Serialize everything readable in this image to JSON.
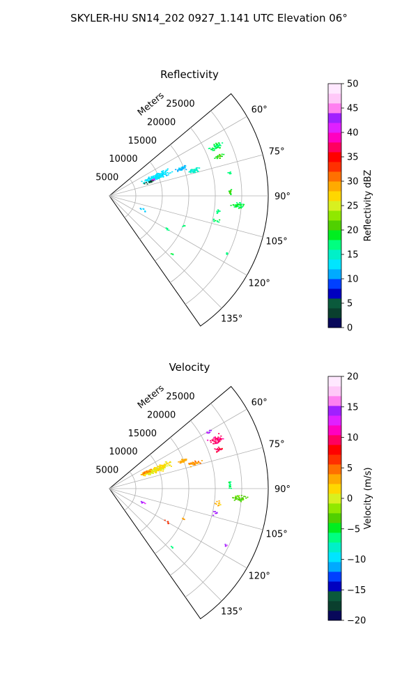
{
  "figure_title": "SKYLER-HU  SN14_202  0927_1.141 UTC Elevation 06°",
  "chart_data": [
    {
      "type": "scatter",
      "title": "Reflectivity",
      "range_label": "Meters",
      "range_ticks": [
        5000,
        10000,
        15000,
        20000,
        25000
      ],
      "range_max": 30000,
      "azimuth_min_deg": 50,
      "azimuth_max_deg": 145,
      "azimuth_ticks": [
        "60°",
        "75°",
        "90°",
        "105°",
        "120°",
        "135°"
      ],
      "azimuth_tick_values": [
        60,
        75,
        90,
        105,
        120,
        135
      ],
      "grid": true,
      "colorbar": {
        "label": "Reflectivity dBZ",
        "min": 0,
        "max": 50,
        "ticks": [
          "0",
          "5",
          "10",
          "15",
          "20",
          "25",
          "30",
          "35",
          "40",
          "45",
          "50"
        ],
        "tick_values": [
          0,
          5,
          10,
          15,
          20,
          25,
          30,
          35,
          40,
          45,
          50
        ],
        "colors": [
          "#08085a",
          "#0a3f2e",
          "#0b5a3c",
          "#0000c0",
          "#0040ff",
          "#00aaff",
          "#00e5ff",
          "#00f0c8",
          "#00ff80",
          "#00ee20",
          "#50d000",
          "#90e800",
          "#d8f020",
          "#ffd700",
          "#ffaa00",
          "#ff7000",
          "#ff3000",
          "#ff0000",
          "#ff0060",
          "#ff00c0",
          "#e020ff",
          "#a020ff",
          "#ff80f0",
          "#ffc8f8",
          "#ffe8ff"
        ]
      },
      "clusters": [
        {
          "az": 67,
          "r": 9500,
          "da": 4.5,
          "dr": 4000,
          "n": 170,
          "value": 13
        },
        {
          "az": 69,
          "r": 14500,
          "da": 2.0,
          "dr": 1500,
          "n": 35,
          "value": 12
        },
        {
          "az": 73,
          "r": 16500,
          "da": 2.0,
          "dr": 1800,
          "n": 35,
          "value": 15
        },
        {
          "az": 65,
          "r": 22000,
          "da": 2.5,
          "dr": 1800,
          "n": 45,
          "value": 18
        },
        {
          "az": 70,
          "r": 22000,
          "da": 1.5,
          "dr": 1200,
          "n": 20,
          "value": 20
        },
        {
          "az": 79,
          "r": 23000,
          "da": 1.0,
          "dr": 500,
          "n": 8,
          "value": 18
        },
        {
          "az": 88,
          "r": 22700,
          "da": 2.5,
          "dr": 300,
          "n": 14,
          "value": 20
        },
        {
          "az": 94,
          "r": 24500,
          "da": 2.0,
          "dr": 1800,
          "n": 40,
          "value": 18
        },
        {
          "az": 98,
          "r": 20500,
          "da": 2.0,
          "dr": 900,
          "n": 10,
          "value": 17
        },
        {
          "az": 103,
          "r": 20500,
          "da": 1.5,
          "dr": 800,
          "n": 8,
          "value": 18
        },
        {
          "az": 112,
          "r": 15000,
          "da": 1.0,
          "dr": 500,
          "n": 4,
          "value": 18
        },
        {
          "az": 116,
          "r": 24500,
          "da": 1.0,
          "dr": 500,
          "n": 5,
          "value": 17
        },
        {
          "az": 120,
          "r": 12500,
          "da": 2.0,
          "dr": 800,
          "n": 5,
          "value": 17
        },
        {
          "az": 133,
          "r": 16000,
          "da": 1.0,
          "dr": 500,
          "n": 3,
          "value": 18
        },
        {
          "az": 112,
          "r": 6500,
          "da": 3.0,
          "dr": 1200,
          "n": 6,
          "value": 12
        },
        {
          "az": 70,
          "r": 8000,
          "da": 2.0,
          "dr": 1500,
          "n": 18,
          "value": 4
        },
        {
          "az": 69,
          "r": 9000,
          "da": 1.0,
          "dr": 800,
          "n": 6,
          "value": 40
        }
      ]
    },
    {
      "type": "scatter",
      "title": "Velocity",
      "range_label": "Meters",
      "range_ticks": [
        5000,
        10000,
        15000,
        20000,
        25000
      ],
      "range_max": 30000,
      "azimuth_min_deg": 50,
      "azimuth_max_deg": 145,
      "azimuth_ticks": [
        "60°",
        "75°",
        "90°",
        "105°",
        "120°",
        "135°"
      ],
      "azimuth_tick_values": [
        60,
        75,
        90,
        105,
        120,
        135
      ],
      "grid": true,
      "colorbar": {
        "label": "Velocity (m/s)",
        "min": -20,
        "max": 20,
        "ticks": [
          "−20",
          "−15",
          "−10",
          "−5",
          "0",
          "5",
          "10",
          "15",
          "20"
        ],
        "tick_values": [
          -20,
          -15,
          -10,
          -5,
          0,
          5,
          10,
          15,
          20
        ],
        "colors": [
          "#08085a",
          "#0a3f2e",
          "#0b5a3c",
          "#0000c0",
          "#0040ff",
          "#00aaff",
          "#00e5ff",
          "#00f0c8",
          "#00ff80",
          "#00ee20",
          "#50d000",
          "#90e800",
          "#d8f020",
          "#ffd700",
          "#ffaa00",
          "#ff7000",
          "#ff3000",
          "#ff0000",
          "#ff0060",
          "#ff00c0",
          "#e020ff",
          "#a020ff",
          "#ff80f0",
          "#ffc8f8",
          "#ffe8ff"
        ]
      },
      "clusters": [
        {
          "az": 67,
          "r": 9500,
          "da": 4.5,
          "dr": 4000,
          "n": 170,
          "value": 1
        },
        {
          "az": 65,
          "r": 7500,
          "da": 2.0,
          "dr": 1500,
          "n": 30,
          "value": 4
        },
        {
          "az": 69,
          "r": 14500,
          "da": 2.0,
          "dr": 1500,
          "n": 35,
          "value": 3
        },
        {
          "az": 73,
          "r": 16500,
          "da": 2.0,
          "dr": 1800,
          "n": 35,
          "value": 4
        },
        {
          "az": 65,
          "r": 22000,
          "da": 2.5,
          "dr": 1800,
          "n": 45,
          "value": 10
        },
        {
          "az": 70,
          "r": 22000,
          "da": 1.5,
          "dr": 1200,
          "n": 20,
          "value": 9
        },
        {
          "az": 60,
          "r": 21500,
          "da": 1.0,
          "dr": 800,
          "n": 8,
          "value": 14
        },
        {
          "az": 88,
          "r": 22700,
          "da": 2.5,
          "dr": 300,
          "n": 14,
          "value": -6
        },
        {
          "az": 94,
          "r": 24500,
          "da": 2.0,
          "dr": 1800,
          "n": 40,
          "value": -3
        },
        {
          "az": 98,
          "r": 20500,
          "da": 2.0,
          "dr": 900,
          "n": 10,
          "value": 3
        },
        {
          "az": 103,
          "r": 20500,
          "da": 1.5,
          "dr": 800,
          "n": 8,
          "value": 14
        },
        {
          "az": 112,
          "r": 15000,
          "da": 1.0,
          "dr": 500,
          "n": 4,
          "value": 3
        },
        {
          "az": 116,
          "r": 24500,
          "da": 1.0,
          "dr": 500,
          "n": 5,
          "value": 15
        },
        {
          "az": 120,
          "r": 12500,
          "da": 2.0,
          "dr": 800,
          "n": 5,
          "value": 6
        },
        {
          "az": 133,
          "r": 16000,
          "da": 1.0,
          "dr": 500,
          "n": 3,
          "value": -6
        },
        {
          "az": 112,
          "r": 6500,
          "da": 3.0,
          "dr": 1200,
          "n": 6,
          "value": 14
        }
      ]
    }
  ]
}
